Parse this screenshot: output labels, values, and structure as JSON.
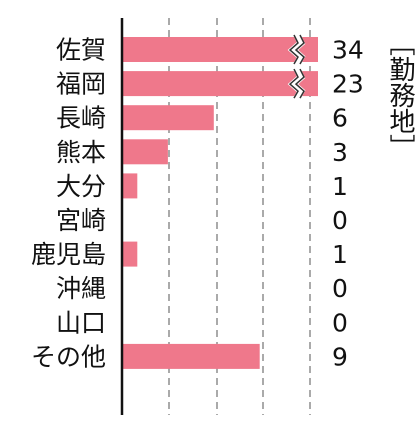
{
  "chart_data": {
    "type": "bar",
    "orientation": "horizontal",
    "categories": [
      "佐賀",
      "福岡",
      "長崎",
      "熊本",
      "大分",
      "宮崎",
      "鹿児島",
      "沖縄",
      "山口",
      "その他"
    ],
    "values": [
      34,
      23,
      6,
      3,
      1,
      0,
      1,
      0,
      0,
      9
    ],
    "value_labels": [
      "34",
      "23",
      "6",
      "3",
      "1",
      "0",
      "1",
      "0",
      "0",
      "9"
    ],
    "axis_break_values": [
      34,
      23
    ],
    "unit_label": "［勤務地］",
    "xlim": [
      0,
      10
    ],
    "grid": true,
    "bar_color": "#ef788b"
  }
}
